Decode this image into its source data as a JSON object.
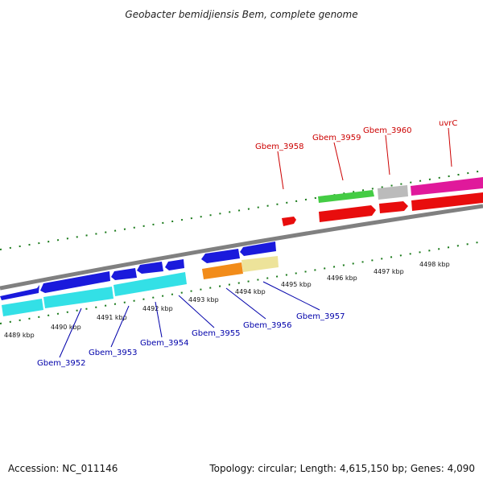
{
  "title": "Geobacter bemidjiensis Bem, complete genome",
  "footer": {
    "accession": "Accession: NC_011146",
    "summary": "Topology: circular; Length: 4,615,150 bp; Genes: 4,090"
  },
  "colors": {
    "backbone": "#808080",
    "ticks": "#1a7a1a",
    "label_forward": "#cc0000",
    "label_reverse": "#0000aa"
  },
  "tick_labels": [
    "4489 kbp",
    "4490 kbp",
    "4491 kbp",
    "4492 kbp",
    "4493 kbp",
    "4494 kbp",
    "4495 kbp",
    "4496 kbp",
    "4497 kbp",
    "4498 kbp"
  ],
  "gene_labels": {
    "forward": [
      "Gbem_3958",
      "Gbem_3959",
      "Gbem_3960",
      "uvrC"
    ],
    "reverse": [
      "Gbem_3952",
      "Gbem_3953",
      "Gbem_3954",
      "Gbem_3955",
      "Gbem_3956",
      "Gbem_3957"
    ]
  },
  "feature_colors": {
    "blue": "#1a1adc",
    "cyan": "#33e0e6",
    "orange": "#f28c1a",
    "khaki": "#ede39a",
    "red": "#e80d0d",
    "green": "#44cc44",
    "gray": "#bbbbbb",
    "magenta": "#e0199b"
  }
}
